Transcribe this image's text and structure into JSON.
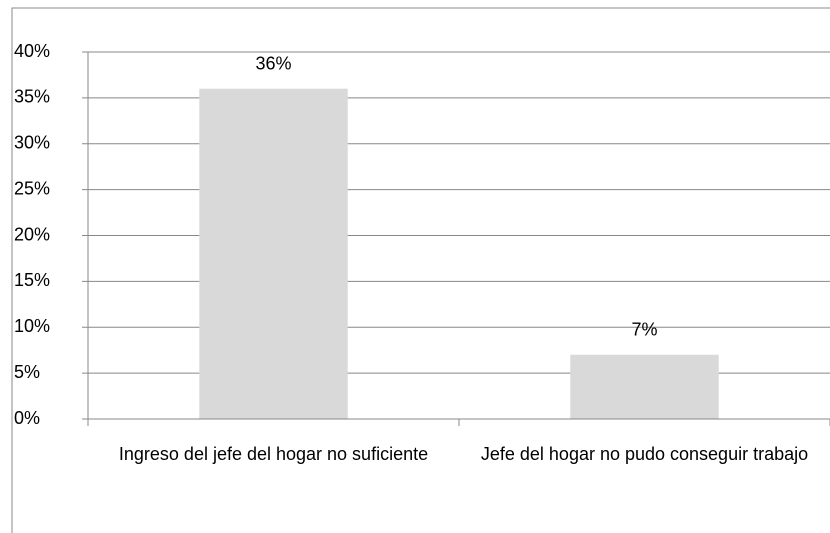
{
  "chart_data": {
    "type": "bar",
    "categories": [
      "Ingreso del jefe del hogar no suficiente",
      "Jefe del hogar no pudo conseguir trabajo"
    ],
    "values": [
      36,
      7
    ],
    "value_labels": [
      "36%",
      "7%"
    ],
    "color": "#d9d9d9",
    "ylim": [
      0,
      40
    ],
    "yticks": [
      {
        "value": 0,
        "label": "0%"
      },
      {
        "value": 5,
        "label": "5%"
      },
      {
        "value": 10,
        "label": "10%"
      },
      {
        "value": 15,
        "label": "15%"
      },
      {
        "value": 20,
        "label": "20%"
      },
      {
        "value": 25,
        "label": "25%"
      },
      {
        "value": 30,
        "label": "30%"
      },
      {
        "value": 35,
        "label": "35%"
      },
      {
        "value": 40,
        "label": "40%"
      }
    ],
    "grid": true
  }
}
